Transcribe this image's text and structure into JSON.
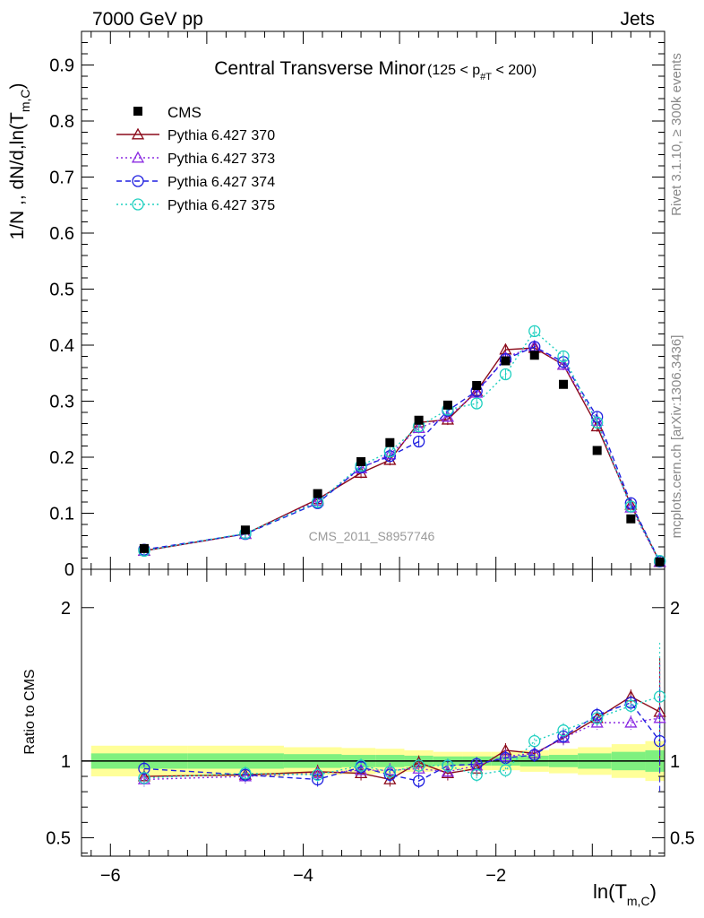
{
  "header": {
    "energy": "7000 GeV pp",
    "process": "Jets"
  },
  "side": {
    "rivet": "Rivet 3.1.10, ≥ 300k events",
    "mcplots": "mcplots.cern.ch [arXiv:1306.3436]"
  },
  "watermark": "CMS_2011_S8957746",
  "chart_data": {
    "type": "line",
    "title": "Central Transverse Minor",
    "title_cut": "(125 < p#T < 200)",
    "xlabel": "ln(Tm,C)",
    "ylabel": "1/N ,, dN/d,ln(Tm,C)",
    "ratio_ylabel": "Ratio to CMS",
    "xlim": [
      -6.3,
      -0.25
    ],
    "ylim": [
      0,
      0.96
    ],
    "ratio_ylim": [
      0.38,
      2.25
    ],
    "xticks": [
      -6,
      -4,
      -2
    ],
    "yticks": [
      0,
      0.1,
      0.2,
      0.3,
      0.4,
      0.5,
      0.6,
      0.7,
      0.8,
      0.9
    ],
    "ratio_yticks": [
      0.5,
      1,
      2
    ],
    "x": [
      -5.65,
      -4.6,
      -3.85,
      -3.4,
      -3.1,
      -2.8,
      -2.5,
      -2.2,
      -1.9,
      -1.6,
      -1.3,
      -0.95,
      -0.6,
      -0.3
    ],
    "data": {
      "name": "CMS",
      "values": [
        0.037,
        0.07,
        0.135,
        0.192,
        0.226,
        0.266,
        0.293,
        0.328,
        0.372,
        0.382,
        0.33,
        0.212,
        0.09,
        0.013
      ]
    },
    "series": [
      {
        "name": "Pythia 6.427 370",
        "color": "#8b0a1a",
        "dash": "solid",
        "marker": "triangle",
        "values": [
          0.033,
          0.063,
          0.125,
          0.172,
          0.195,
          0.262,
          0.267,
          0.318,
          0.392,
          0.395,
          0.365,
          0.255,
          0.115,
          0.013
        ]
      },
      {
        "name": "Pythia 6.427 373",
        "color": "#8b2be2",
        "dash": "dot",
        "marker": "triangle",
        "values": [
          0.033,
          0.063,
          0.122,
          0.18,
          0.205,
          0.252,
          0.272,
          0.315,
          0.378,
          0.398,
          0.365,
          0.265,
          0.11,
          0.013
        ]
      },
      {
        "name": "Pythia 6.427 374",
        "color": "#1f1fe0",
        "dash": "dash",
        "marker": "circle",
        "values": [
          0.035,
          0.063,
          0.118,
          0.182,
          0.202,
          0.228,
          0.283,
          0.318,
          0.375,
          0.397,
          0.37,
          0.272,
          0.118,
          0.014
        ]
      },
      {
        "name": "Pythia 6.427 375",
        "color": "#20d0c0",
        "dash": "dot",
        "marker": "circle",
        "values": [
          0.033,
          0.064,
          0.12,
          0.185,
          0.21,
          0.255,
          0.285,
          0.296,
          0.348,
          0.425,
          0.38,
          0.262,
          0.112,
          0.015
        ]
      }
    ],
    "ratio_series": [
      [
        0.9,
        0.91,
        0.93,
        0.92,
        0.88,
        0.99,
        0.92,
        0.95,
        1.07,
        1.05,
        1.15,
        1.28,
        1.42,
        1.32
      ],
      [
        0.88,
        0.9,
        0.92,
        0.94,
        0.94,
        0.95,
        0.93,
        0.97,
        1.03,
        1.05,
        1.15,
        1.25,
        1.25,
        1.28
      ],
      [
        0.95,
        0.91,
        0.88,
        0.96,
        0.91,
        0.87,
        0.97,
        0.98,
        1.02,
        1.04,
        1.16,
        1.3,
        1.38,
        1.13
      ],
      [
        0.89,
        0.92,
        0.91,
        0.97,
        0.93,
        0.97,
        0.97,
        0.91,
        0.94,
        1.13,
        1.2,
        1.28,
        1.36,
        1.42
      ]
    ],
    "uncertainty_bands": {
      "stat_color": "#7ff07f",
      "total_color": "#ffff99",
      "edges": [
        -6.2,
        -5.2,
        -4.2,
        -3.6,
        -3.25,
        -2.95,
        -2.65,
        -2.35,
        -2.05,
        -1.75,
        -1.45,
        -1.15,
        -0.8,
        -0.45,
        -0.25
      ],
      "inner": [
        0.05,
        0.05,
        0.045,
        0.04,
        0.04,
        0.035,
        0.03,
        0.03,
        0.03,
        0.035,
        0.04,
        0.05,
        0.06,
        0.07
      ],
      "outer": [
        0.1,
        0.1,
        0.09,
        0.085,
        0.08,
        0.07,
        0.06,
        0.06,
        0.06,
        0.07,
        0.08,
        0.09,
        0.11,
        0.13
      ]
    }
  }
}
